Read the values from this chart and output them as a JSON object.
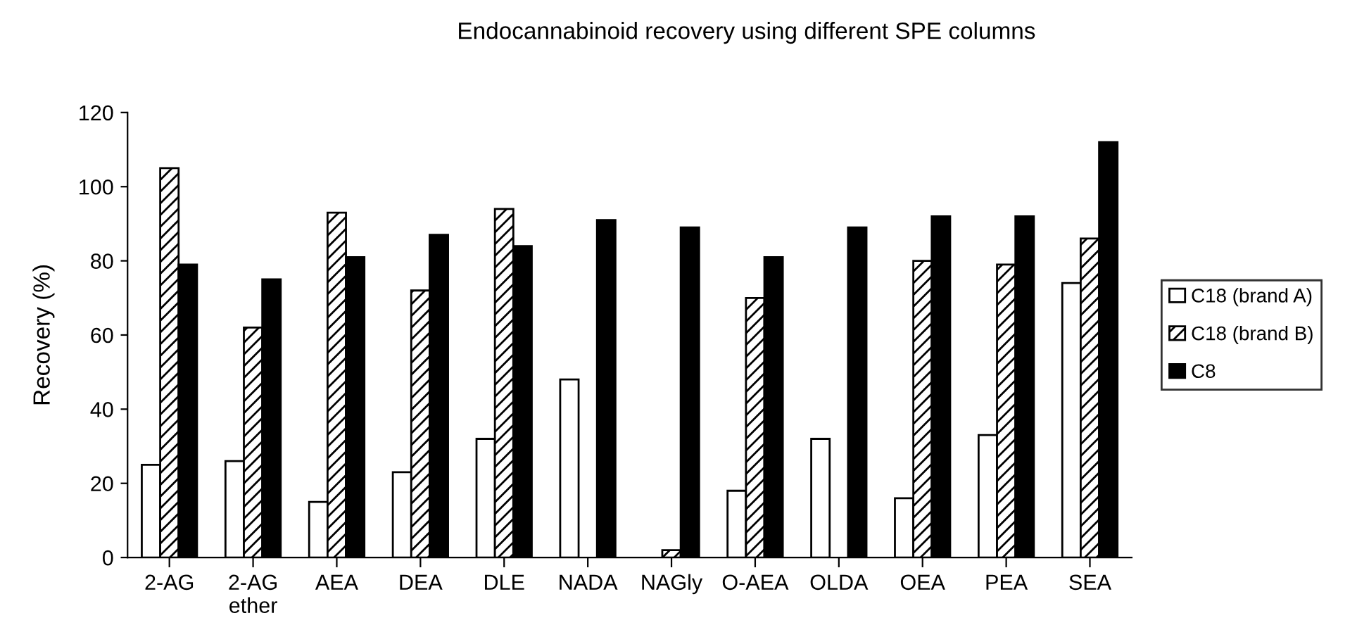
{
  "chart_data": {
    "type": "bar",
    "title": "Endocannabinoid recovery using different SPE columns",
    "ylabel": "Recovery (%)",
    "categories": [
      "2-AG",
      "2-AG\nether",
      "AEA",
      "DEA",
      "DLE",
      "NADA",
      "NAGly",
      "O-AEA",
      "OLDA",
      "OEA",
      "PEA",
      "SEA"
    ],
    "series": [
      {
        "name": "C18 (brand A)",
        "color": "#ffffff",
        "values": [
          25,
          26,
          15,
          23,
          32,
          48,
          null,
          18,
          32,
          16,
          33,
          74
        ]
      },
      {
        "name": "C18 (brand B)",
        "color": "#000000",
        "values": [
          105,
          62,
          93,
          72,
          94,
          null,
          2,
          70,
          null,
          80,
          79,
          86
        ]
      },
      {
        "name": "C8",
        "color": "#000000",
        "values": [
          79,
          75,
          81,
          87,
          84,
          91,
          89,
          81,
          89,
          92,
          92,
          112
        ]
      }
    ],
    "ylim": [
      0,
      120
    ],
    "yticks": [
      0,
      20,
      40,
      60,
      80,
      100,
      120
    ],
    "grid": false,
    "legend": "right"
  }
}
